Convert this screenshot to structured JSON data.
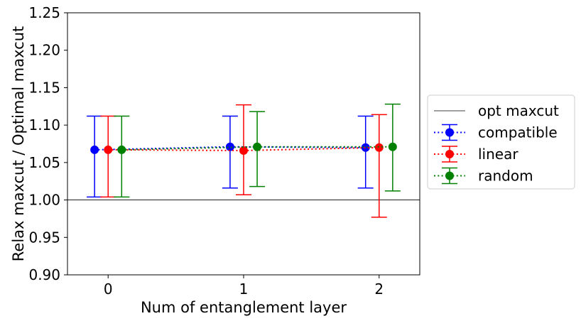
{
  "chart_data": {
    "type": "scatter",
    "xlabel": "Num of entanglement layer",
    "ylabel": "Relax maxcut / Optimal maxcut",
    "xlim": [
      -0.3,
      2.3
    ],
    "ylim": [
      0.9,
      1.25
    ],
    "xticks": [
      "0",
      "1",
      "2"
    ],
    "xtick_values": [
      0,
      1,
      2
    ],
    "yticks": [
      "0.90",
      "0.95",
      "1.00",
      "1.05",
      "1.10",
      "1.15",
      "1.20",
      "1.25"
    ],
    "ytick_values": [
      0.9,
      0.95,
      1.0,
      1.05,
      1.1,
      1.15,
      1.2,
      1.25
    ],
    "grid": false,
    "legend_position": "right, outside plot",
    "reference_line": {
      "name": "opt maxcut",
      "y": 1.0,
      "color": "#000000"
    },
    "series": [
      {
        "name": "compatible",
        "color": "#0000ff",
        "x": [
          -0.1,
          0.9,
          1.9
        ],
        "y": [
          1.067,
          1.071,
          1.07
        ],
        "err_low": [
          1.004,
          1.016,
          1.016
        ],
        "err_high": [
          1.112,
          1.112,
          1.112
        ]
      },
      {
        "name": "linear",
        "color": "#ff0000",
        "x": [
          0,
          1,
          2
        ],
        "y": [
          1.067,
          1.066,
          1.07
        ],
        "err_low": [
          1.004,
          1.007,
          0.977
        ],
        "err_high": [
          1.112,
          1.127,
          1.114
        ]
      },
      {
        "name": "random",
        "color": "#008000",
        "x": [
          0.1,
          1.1,
          2.1
        ],
        "y": [
          1.067,
          1.071,
          1.071
        ],
        "err_low": [
          1.004,
          1.018,
          1.012
        ],
        "err_high": [
          1.112,
          1.118,
          1.128
        ]
      }
    ]
  }
}
